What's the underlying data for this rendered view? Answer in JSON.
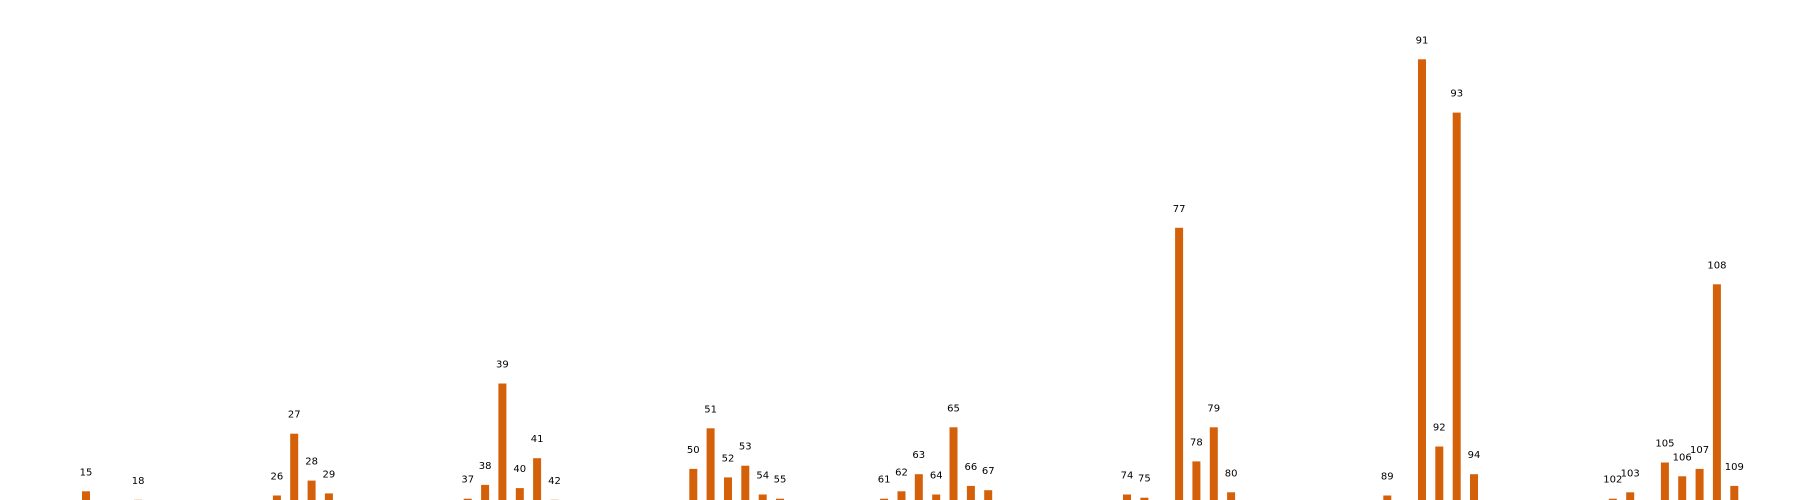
{
  "chart_data": {
    "type": "bar",
    "title": "",
    "xlabel": "",
    "ylabel": "",
    "grid": false,
    "bar_color": "#d4600a",
    "background": "#ffffff",
    "series": [
      {
        "values": [
          {
            "label": "15",
            "value": 11
          },
          {
            "label": "",
            "value": 0
          },
          {
            "label": "",
            "value": 0
          },
          {
            "label": "18",
            "value": 3
          },
          {
            "label": "",
            "value": 0
          },
          {
            "label": "",
            "value": 0
          },
          {
            "label": "",
            "value": 0
          },
          {
            "label": "",
            "value": 0
          },
          {
            "label": "",
            "value": 0
          },
          {
            "label": "",
            "value": 0
          },
          {
            "label": "",
            "value": 0
          },
          {
            "label": "26",
            "value": 7
          },
          {
            "label": "27",
            "value": 65
          },
          {
            "label": "28",
            "value": 21
          },
          {
            "label": "29",
            "value": 9
          },
          {
            "label": "",
            "value": 0
          },
          {
            "label": "",
            "value": 0
          },
          {
            "label": "",
            "value": 0
          },
          {
            "label": "",
            "value": 0
          },
          {
            "label": "",
            "value": 0
          },
          {
            "label": "",
            "value": 0
          },
          {
            "label": "",
            "value": 0
          },
          {
            "label": "37",
            "value": 4
          },
          {
            "label": "38",
            "value": 17
          },
          {
            "label": "39",
            "value": 112
          },
          {
            "label": "40",
            "value": 14
          },
          {
            "label": "41",
            "value": 42
          },
          {
            "label": "42",
            "value": 3
          },
          {
            "label": "",
            "value": 0
          },
          {
            "label": "",
            "value": 0
          },
          {
            "label": "",
            "value": 0
          },
          {
            "label": "",
            "value": 0
          },
          {
            "label": "",
            "value": 0
          },
          {
            "label": "",
            "value": 0
          },
          {
            "label": "",
            "value": 0
          },
          {
            "label": "50",
            "value": 32
          },
          {
            "label": "51",
            "value": 70
          },
          {
            "label": "52",
            "value": 24
          },
          {
            "label": "53",
            "value": 35
          },
          {
            "label": "54",
            "value": 8
          },
          {
            "label": "55",
            "value": 4
          },
          {
            "label": "",
            "value": 0
          },
          {
            "label": "",
            "value": 0
          },
          {
            "label": "",
            "value": 0
          },
          {
            "label": "",
            "value": 0
          },
          {
            "label": "",
            "value": 0
          },
          {
            "label": "61",
            "value": 4
          },
          {
            "label": "62",
            "value": 11
          },
          {
            "label": "63",
            "value": 27
          },
          {
            "label": "64",
            "value": 8
          },
          {
            "label": "65",
            "value": 71
          },
          {
            "label": "66",
            "value": 16
          },
          {
            "label": "67",
            "value": 12
          },
          {
            "label": "",
            "value": 0
          },
          {
            "label": "",
            "value": 0
          },
          {
            "label": "",
            "value": 0
          },
          {
            "label": "",
            "value": 0
          },
          {
            "label": "",
            "value": 0
          },
          {
            "label": "",
            "value": 0
          },
          {
            "label": "",
            "value": 0
          },
          {
            "label": "74",
            "value": 8
          },
          {
            "label": "75",
            "value": 5
          },
          {
            "label": "",
            "value": 0
          },
          {
            "label": "77",
            "value": 258
          },
          {
            "label": "78",
            "value": 39
          },
          {
            "label": "79",
            "value": 71
          },
          {
            "label": "80",
            "value": 10
          },
          {
            "label": "",
            "value": 0
          },
          {
            "label": "",
            "value": 0
          },
          {
            "label": "",
            "value": 0
          },
          {
            "label": "",
            "value": 0
          },
          {
            "label": "",
            "value": 0
          },
          {
            "label": "",
            "value": 0
          },
          {
            "label": "",
            "value": 0
          },
          {
            "label": "",
            "value": 0
          },
          {
            "label": "89",
            "value": 7
          },
          {
            "label": "",
            "value": 0
          },
          {
            "label": "91",
            "value": 416
          },
          {
            "label": "92",
            "value": 53
          },
          {
            "label": "93",
            "value": 366
          },
          {
            "label": "94",
            "value": 27
          },
          {
            "label": "",
            "value": 0
          },
          {
            "label": "",
            "value": 0
          },
          {
            "label": "",
            "value": 0
          },
          {
            "label": "",
            "value": 0
          },
          {
            "label": "",
            "value": 0
          },
          {
            "label": "",
            "value": 0
          },
          {
            "label": "",
            "value": 0
          },
          {
            "label": "102",
            "value": 4
          },
          {
            "label": "103",
            "value": 10
          },
          {
            "label": "",
            "value": 0
          },
          {
            "label": "105",
            "value": 38
          },
          {
            "label": "106",
            "value": 25
          },
          {
            "label": "107",
            "value": 32
          },
          {
            "label": "108",
            "value": 205
          },
          {
            "label": "109",
            "value": 16
          }
        ]
      }
    ],
    "ylim": [
      0,
      450
    ]
  }
}
